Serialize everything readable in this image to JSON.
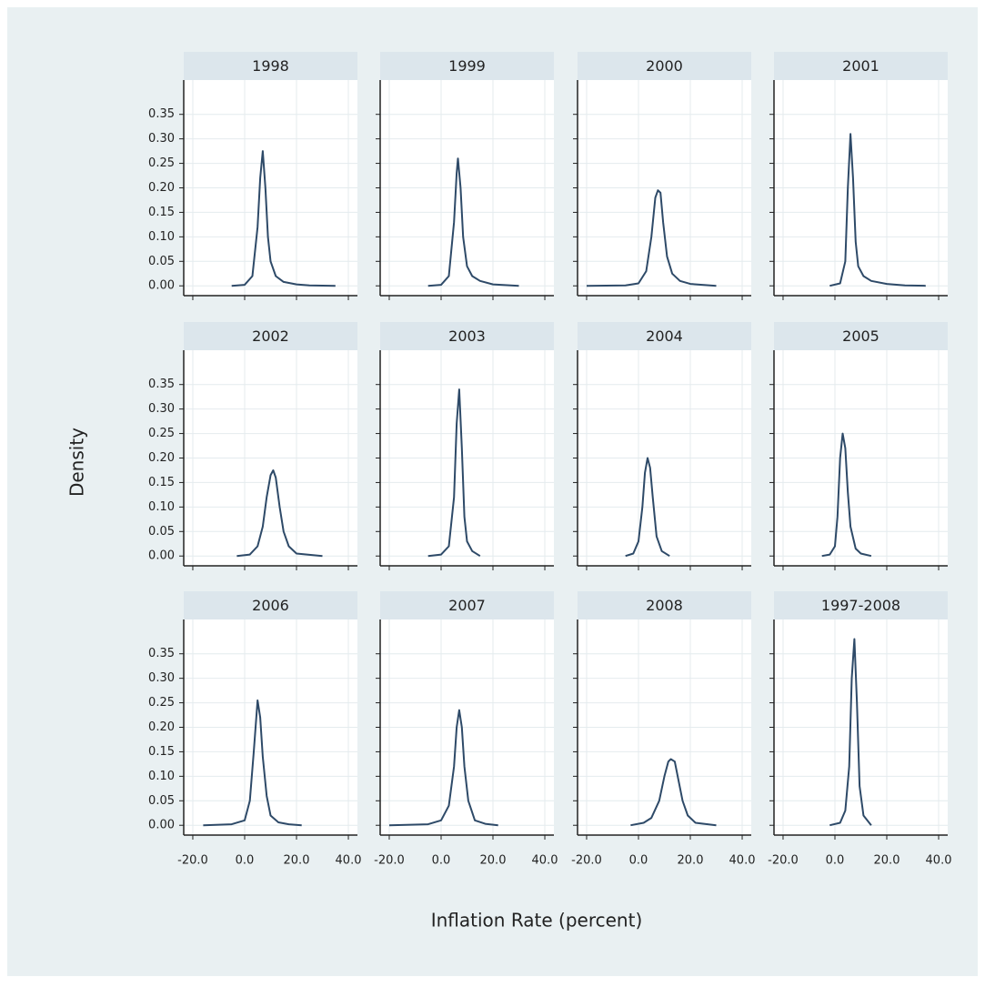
{
  "axes": {
    "xlabel": "Inflation Rate (percent)",
    "ylabel": "Density",
    "xlim": [
      -23.5,
      43.5
    ],
    "xticks": [
      {
        "value": -20,
        "label": "-20.0"
      },
      {
        "value": 0,
        "label": "0.0"
      },
      {
        "value": 20,
        "label": "20.0"
      },
      {
        "value": 40,
        "label": "40.0"
      }
    ],
    "ylim": [
      -0.02,
      0.42
    ],
    "yticks": [
      {
        "value": 0,
        "label": "0.00"
      },
      {
        "value": 0.05,
        "label": "0.05"
      },
      {
        "value": 0.1,
        "label": "0.10"
      },
      {
        "value": 0.15,
        "label": "0.15"
      },
      {
        "value": 0.2,
        "label": "0.20"
      },
      {
        "value": 0.25,
        "label": "0.25"
      },
      {
        "value": 0.3,
        "label": "0.30"
      },
      {
        "value": 0.35,
        "label": "0.35"
      }
    ],
    "grid": true
  },
  "chart_data": [
    {
      "type": "line",
      "title": "1998",
      "color": "#2e4a68",
      "x": [
        -5,
        0,
        3,
        5,
        6,
        7,
        8,
        9,
        10,
        12,
        15,
        20,
        25,
        35
      ],
      "values": [
        0,
        0.002,
        0.02,
        0.12,
        0.22,
        0.275,
        0.2,
        0.1,
        0.05,
        0.02,
        0.008,
        0.003,
        0.001,
        0
      ]
    },
    {
      "type": "line",
      "title": "1999",
      "color": "#2e4a68",
      "x": [
        -5,
        0,
        3,
        5,
        6,
        6.5,
        7.5,
        8.5,
        10,
        12,
        15,
        20,
        30
      ],
      "values": [
        0,
        0.002,
        0.02,
        0.13,
        0.23,
        0.26,
        0.2,
        0.1,
        0.04,
        0.02,
        0.01,
        0.003,
        0
      ]
    },
    {
      "type": "line",
      "title": "2000",
      "color": "#2e4a68",
      "x": [
        -20,
        -5,
        0,
        3,
        5,
        6.5,
        7.5,
        8.5,
        9.5,
        11,
        13,
        16,
        20,
        30
      ],
      "values": [
        0,
        0.001,
        0.005,
        0.03,
        0.1,
        0.18,
        0.195,
        0.19,
        0.13,
        0.06,
        0.025,
        0.01,
        0.004,
        0
      ]
    },
    {
      "type": "line",
      "title": "2001",
      "color": "#2e4a68",
      "x": [
        -2,
        2,
        4,
        5,
        6,
        7,
        8,
        9,
        11,
        14,
        20,
        27,
        35
      ],
      "values": [
        0,
        0.005,
        0.05,
        0.2,
        0.31,
        0.22,
        0.09,
        0.04,
        0.02,
        0.01,
        0.004,
        0.001,
        0
      ]
    },
    {
      "type": "line",
      "title": "2002",
      "color": "#2e4a68",
      "x": [
        -3,
        2,
        5,
        7,
        8.5,
        10,
        11,
        12,
        13.5,
        15,
        17,
        20,
        30
      ],
      "values": [
        0,
        0.003,
        0.02,
        0.06,
        0.12,
        0.165,
        0.175,
        0.16,
        0.1,
        0.05,
        0.02,
        0.005,
        0
      ]
    },
    {
      "type": "line",
      "title": "2003",
      "color": "#2e4a68",
      "x": [
        -5,
        0,
        3,
        5,
        6,
        7,
        8,
        9,
        10,
        12,
        15
      ],
      "values": [
        0,
        0.003,
        0.02,
        0.12,
        0.27,
        0.34,
        0.22,
        0.08,
        0.03,
        0.01,
        0
      ]
    },
    {
      "type": "line",
      "title": "2004",
      "color": "#2e4a68",
      "x": [
        -5,
        -2,
        0,
        1.5,
        2.5,
        3.5,
        4.5,
        5.5,
        7,
        9,
        12
      ],
      "values": [
        0,
        0.005,
        0.03,
        0.1,
        0.17,
        0.2,
        0.18,
        0.12,
        0.04,
        0.01,
        0
      ]
    },
    {
      "type": "line",
      "title": "2005",
      "color": "#2e4a68",
      "x": [
        -5,
        -2,
        0,
        1,
        2,
        3,
        4,
        5,
        6,
        8,
        10,
        14
      ],
      "values": [
        0,
        0.003,
        0.02,
        0.08,
        0.2,
        0.25,
        0.22,
        0.13,
        0.06,
        0.015,
        0.005,
        0
      ]
    },
    {
      "type": "line",
      "title": "2006",
      "color": "#2e4a68",
      "x": [
        -16,
        -5,
        0,
        2,
        3.5,
        5,
        6,
        7,
        8.5,
        10,
        13,
        17,
        22
      ],
      "values": [
        0,
        0.002,
        0.01,
        0.05,
        0.15,
        0.255,
        0.22,
        0.14,
        0.06,
        0.02,
        0.006,
        0.002,
        0
      ]
    },
    {
      "type": "line",
      "title": "2007",
      "color": "#2e4a68",
      "x": [
        -20,
        -5,
        0,
        3,
        5,
        6,
        7,
        8,
        9,
        10.5,
        13,
        17,
        22
      ],
      "values": [
        0,
        0.002,
        0.01,
        0.04,
        0.12,
        0.2,
        0.235,
        0.2,
        0.12,
        0.05,
        0.01,
        0.003,
        0
      ]
    },
    {
      "type": "line",
      "title": "2008",
      "color": "#2e4a68",
      "x": [
        -3,
        2,
        5,
        8,
        10,
        11.5,
        12.5,
        14,
        15.5,
        17,
        19,
        22,
        30
      ],
      "values": [
        0,
        0.005,
        0.015,
        0.05,
        0.1,
        0.13,
        0.135,
        0.13,
        0.09,
        0.05,
        0.02,
        0.005,
        0
      ]
    },
    {
      "type": "line",
      "title": "1997-2008",
      "color": "#2e4a68",
      "x": [
        -2,
        2,
        4,
        5.5,
        6.5,
        7.5,
        8.5,
        9.5,
        11,
        14
      ],
      "values": [
        0,
        0.005,
        0.03,
        0.12,
        0.3,
        0.38,
        0.25,
        0.08,
        0.02,
        0
      ]
    }
  ]
}
